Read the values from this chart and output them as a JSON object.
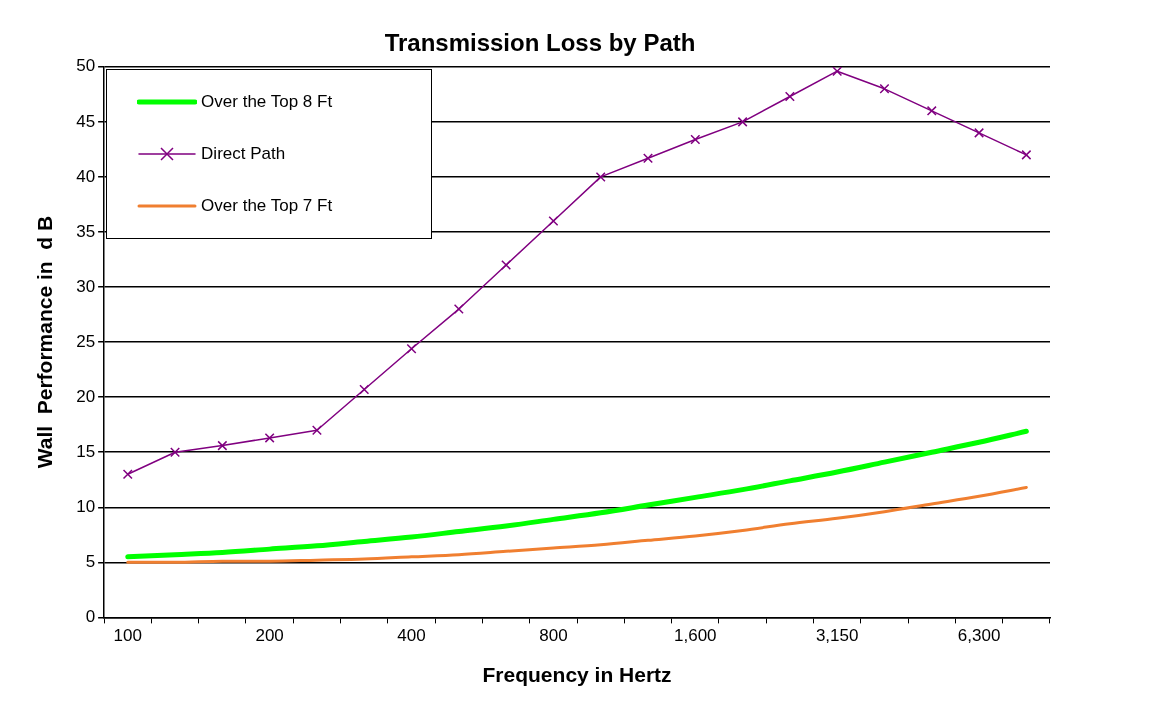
{
  "chart_data": {
    "type": "line",
    "title": "Transmission Loss by Path",
    "xlabel": "Frequency in Hertz",
    "ylabel": "Wall  Performance in  d B",
    "categories": [
      "100",
      null,
      null,
      "200",
      null,
      null,
      "400",
      null,
      null,
      "800",
      null,
      null,
      "1,600",
      null,
      null,
      "3,150",
      null,
      null,
      "6,300",
      null
    ],
    "series": [
      {
        "name": "Over the Top 8 Ft",
        "color": "#00ff00",
        "marker": "none",
        "values": [
          5.5,
          5.7,
          5.9,
          6.2,
          6.5,
          6.9,
          7.3,
          7.8,
          8.3,
          8.9,
          9.5,
          10.2,
          10.9,
          11.6,
          12.4,
          13.2,
          14.1,
          15,
          15.9,
          16.9
        ]
      },
      {
        "name": "Direct Path",
        "color": "#800080",
        "marker": "cross",
        "values": [
          13,
          15,
          15.6,
          16.3,
          17,
          20.7,
          24.4,
          28,
          32,
          36,
          40,
          41.7,
          43.4,
          45,
          47.3,
          49.6,
          48,
          46,
          44,
          42
        ]
      },
      {
        "name": "Over the Top 7 Ft",
        "color": "#f07f30",
        "marker": "none",
        "values": [
          5.0,
          5.0,
          5.1,
          5.1,
          5.2,
          5.3,
          5.5,
          5.7,
          6.0,
          6.3,
          6.6,
          7.0,
          7.4,
          7.9,
          8.5,
          9.0,
          9.6,
          10.3,
          11.0,
          11.8
        ]
      }
    ],
    "ylim": [
      0,
      50
    ],
    "yticks": [
      0,
      5,
      10,
      15,
      20,
      25,
      30,
      35,
      40,
      45,
      50
    ],
    "grid": "y",
    "legend": "top left"
  }
}
